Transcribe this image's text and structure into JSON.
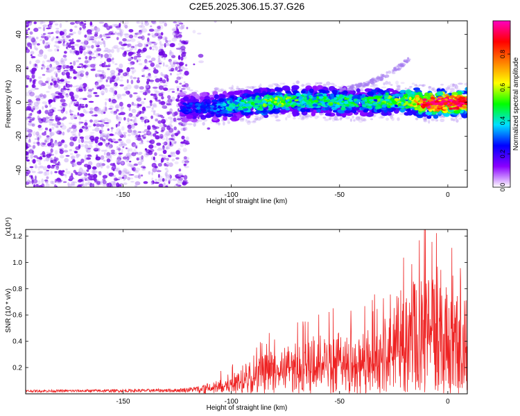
{
  "title": "C2E5.2025.306.15.37.G26",
  "chart_data": [
    {
      "type": "heatmap",
      "xlabel": "Height of straight line (km)",
      "ylabel": "Frequency (Hz)",
      "xlim": [
        -195,
        9
      ],
      "ylim": [
        -50,
        48
      ],
      "x_ticks": [
        -150,
        -100,
        -50,
        0
      ],
      "y_ticks": [
        -40,
        -20,
        0,
        20,
        40
      ],
      "colorbar": {
        "label": "Normalized spectral amplitude",
        "range": [
          0,
          1
        ],
        "ticks": [
          "0.0",
          "0.2",
          "0.4",
          "0.6",
          "0.8"
        ],
        "colors": [
          "#ffffff",
          "#8a00ff",
          "#0000ff",
          "#00e0ff",
          "#00ff00",
          "#ffff00",
          "#ff8000",
          "#ff0000",
          "#ff00c0"
        ]
      },
      "noise_region": {
        "x": [
          -195,
          -120
        ],
        "amplitude_range": [
          0.1,
          0.25
        ]
      },
      "main_track": [
        {
          "x": -123,
          "y": -3,
          "amp": 0.25
        },
        {
          "x": -110,
          "y": -3,
          "amp": 0.3
        },
        {
          "x": -100,
          "y": -2,
          "amp": 0.4
        },
        {
          "x": -90,
          "y": -1,
          "amp": 0.45
        },
        {
          "x": -80,
          "y": 0,
          "amp": 0.55
        },
        {
          "x": -70,
          "y": 1,
          "amp": 0.5
        },
        {
          "x": -60,
          "y": 1,
          "amp": 0.45
        },
        {
          "x": -50,
          "y": 0,
          "amp": 0.5
        },
        {
          "x": -40,
          "y": 0,
          "amp": 0.45
        },
        {
          "x": -30,
          "y": 1,
          "amp": 0.5
        },
        {
          "x": -20,
          "y": 1,
          "amp": 0.55
        },
        {
          "x": -10,
          "y": -1,
          "amp": 0.85
        },
        {
          "x": 0,
          "y": 0,
          "amp": 1.0
        },
        {
          "x": 9,
          "y": 0,
          "amp": 0.9
        }
      ],
      "secondary_track": [
        {
          "x": -50,
          "y": 7,
          "amp": 0.2
        },
        {
          "x": -35,
          "y": 12,
          "amp": 0.18
        },
        {
          "x": -25,
          "y": 18,
          "amp": 0.15
        },
        {
          "x": -18,
          "y": 26,
          "amp": 0.12
        }
      ]
    },
    {
      "type": "line",
      "xlabel": "Height of straight line (km)",
      "ylabel": "SNR (10 * v/v)",
      "y_scale_note": "(x10⁴)",
      "xlim": [
        -195,
        9
      ],
      "ylim": [
        0,
        1.25
      ],
      "x_ticks": [
        -150,
        -100,
        -50,
        0
      ],
      "y_ticks": [
        0.2,
        0.4,
        0.6,
        0.8,
        1.0,
        1.2
      ],
      "series_color": "#ee2222",
      "envelope": [
        {
          "x": -195,
          "y": 0.03
        },
        {
          "x": -150,
          "y": 0.035
        },
        {
          "x": -125,
          "y": 0.04
        },
        {
          "x": -115,
          "y": 0.06
        },
        {
          "x": -105,
          "y": 0.12
        },
        {
          "x": -95,
          "y": 0.22
        },
        {
          "x": -85,
          "y": 0.3
        },
        {
          "x": -75,
          "y": 0.38
        },
        {
          "x": -60,
          "y": 0.45
        },
        {
          "x": -50,
          "y": 0.48
        },
        {
          "x": -40,
          "y": 0.5
        },
        {
          "x": -30,
          "y": 0.55
        },
        {
          "x": -20,
          "y": 0.85
        },
        {
          "x": -10,
          "y": 0.9
        },
        {
          "x": 0,
          "y": 0.82
        },
        {
          "x": 5,
          "y": 1.1
        },
        {
          "x": 9,
          "y": 0.65
        }
      ]
    }
  ]
}
